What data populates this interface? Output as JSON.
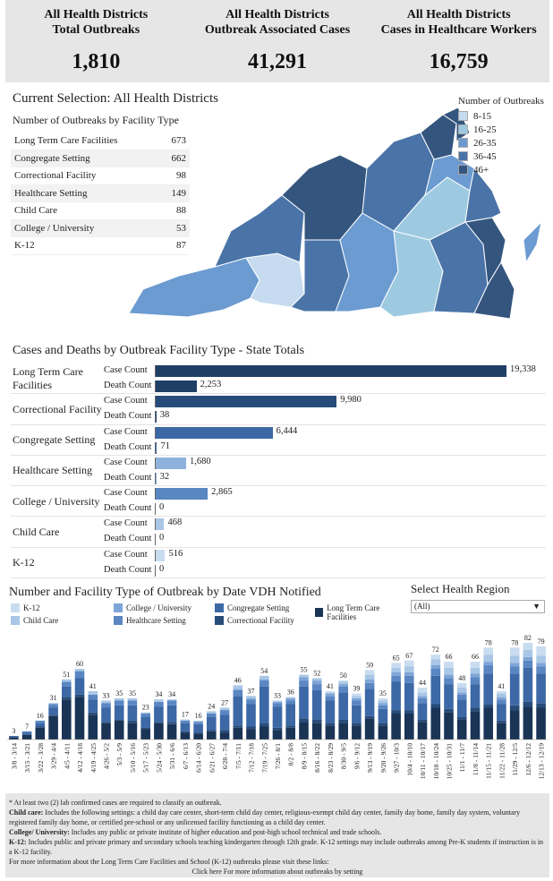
{
  "kpis": [
    {
      "title_1": "All Health Districts",
      "title_2": "Total Outbreaks",
      "value": "1,810"
    },
    {
      "title_1": "All Health Districts",
      "title_2": "Outbreak Associated Cases",
      "value": "41,291"
    },
    {
      "title_1": "All Health Districts",
      "title_2": "Cases in Healthcare Workers",
      "value": "16,759"
    }
  ],
  "selection_title": "Current Selection: All Health Districts",
  "facility_table": {
    "title": "Number of Outbreaks by Facility Type",
    "rows": [
      {
        "label": "Long Term Care Facilities",
        "value": "673"
      },
      {
        "label": "Congregate Setting",
        "value": "662"
      },
      {
        "label": "Correctional Facility",
        "value": "98"
      },
      {
        "label": "Healthcare Setting",
        "value": "149"
      },
      {
        "label": "Child Care",
        "value": "88"
      },
      {
        "label": "College / University",
        "value": "53"
      },
      {
        "label": "K-12",
        "value": "87"
      }
    ]
  },
  "map_legend": {
    "title": "Number of Outbreaks",
    "items": [
      {
        "label": "8-15",
        "color": "#c6dbef"
      },
      {
        "label": "16-25",
        "color": "#9ecae1"
      },
      {
        "label": "26-35",
        "color": "#6b9bd1"
      },
      {
        "label": "36-45",
        "color": "#4a74a8"
      },
      {
        "label": "46+",
        "color": "#34557e"
      }
    ]
  },
  "cases_deaths": {
    "title": "Cases and Deaths by Outbreak Facility Type - State Totals",
    "case_label": "Case Count",
    "death_label": "Death Count",
    "max": 19338,
    "rows": [
      {
        "category": "Long Term Care Facilities",
        "cases": 19338,
        "cases_text": "19,338",
        "deaths": 2253,
        "deaths_text": "2,253",
        "case_color": "#1f3f66",
        "death_color": "#1f3f66"
      },
      {
        "category": "Correctional Facility",
        "cases": 9980,
        "cases_text": "9,980",
        "deaths": 38,
        "deaths_text": "38",
        "case_color": "#274c7a",
        "death_color": "#274c7a"
      },
      {
        "category": "Congregate Setting",
        "cases": 6444,
        "cases_text": "6,444",
        "deaths": 71,
        "deaths_text": "71",
        "case_color": "#3c68a6",
        "death_color": "#3c68a6"
      },
      {
        "category": "Healthcare Setting",
        "cases": 1680,
        "cases_text": "1,680",
        "deaths": 32,
        "deaths_text": "32",
        "case_color": "#8fb2dc",
        "death_color": "#8fb2dc"
      },
      {
        "category": "College / University",
        "cases": 2865,
        "cases_text": "2,865",
        "deaths": 0,
        "deaths_text": "0",
        "case_color": "#5a86c2",
        "death_color": "#5a86c2"
      },
      {
        "category": "Child Care",
        "cases": 468,
        "cases_text": "468",
        "deaths": 0,
        "deaths_text": "0",
        "case_color": "#a9c6e6",
        "death_color": "#a9c6e6"
      },
      {
        "category": "K-12",
        "cases": 516,
        "cases_text": "516",
        "deaths": 0,
        "deaths_text": "0",
        "case_color": "#c9dcf0",
        "death_color": "#c9dcf0"
      }
    ]
  },
  "timeline": {
    "title": "Number and Facility Type of Outbreak by Date VDH Notified",
    "legend": [
      {
        "label": "K-12",
        "color": "#c9dcf0"
      },
      {
        "label": "Child Care",
        "color": "#a9c6e6"
      },
      {
        "label": "College / University",
        "color": "#7fa5d6"
      },
      {
        "label": "Healthcare Setting",
        "color": "#5a86c2"
      },
      {
        "label": "Congregate Setting",
        "color": "#3c68a6"
      },
      {
        "label": "Correctional Facility",
        "color": "#274c7a"
      },
      {
        "label": "Long Term Care Facilities",
        "color": "#1a3456"
      }
    ]
  },
  "region_select": {
    "label": "Select Health Region",
    "value": "(All)"
  },
  "chart_data": {
    "type": "bar",
    "title": "Number and Facility Type of Outbreak by Date VDH Notified",
    "stacked": true,
    "categories": [
      "3/8 - 3/14",
      "3/15 - 3/21",
      "3/22 - 3/28",
      "3/29 - 4/4",
      "4/5 - 4/11",
      "4/12 - 4/18",
      "4/19 - 4/25",
      "4/26 - 5/2",
      "5/3 - 5/9",
      "5/10 - 5/16",
      "5/17 - 5/23",
      "5/24 - 5/30",
      "5/31 - 6/6",
      "6/7 - 6/13",
      "6/14 - 6/20",
      "6/21 - 6/27",
      "6/28 - 7/4",
      "7/5 - 7/11",
      "7/12 - 7/18",
      "7/19 - 7/25",
      "7/26 - 8/1",
      "8/2 - 8/8",
      "8/9 - 8/15",
      "8/16 - 8/22",
      "8/23 - 8/29",
      "8/30 - 9/5",
      "9/6 - 9/12",
      "9/13 - 9/19",
      "9/20 - 9/26",
      "9/27 - 10/3",
      "10/4 - 10/10",
      "10/11 - 10/17",
      "10/18 - 10/24",
      "10/25 - 10/31",
      "11/1 - 11/7",
      "11/8 - 11/14",
      "11/15 - 11/21",
      "11/22 - 11/28",
      "11/29 - 12/5",
      "12/6 - 12/12",
      "12/13 - 12/19"
    ],
    "totals": [
      3,
      7,
      16,
      31,
      51,
      60,
      41,
      33,
      35,
      35,
      23,
      34,
      34,
      17,
      16,
      24,
      27,
      46,
      37,
      54,
      33,
      36,
      55,
      52,
      41,
      50,
      39,
      59,
      35,
      65,
      67,
      44,
      72,
      66,
      48,
      66,
      78,
      41,
      78,
      82,
      79
    ],
    "series": [
      {
        "name": "Long Term Care Facilities",
        "color": "#1a3456",
        "values": [
          2,
          4,
          10,
          20,
          34,
          36,
          21,
          14,
          16,
          14,
          9,
          14,
          13,
          6,
          5,
          7,
          6,
          10,
          9,
          11,
          8,
          10,
          15,
          14,
          12,
          14,
          12,
          18,
          12,
          22,
          22,
          15,
          27,
          23,
          17,
          24,
          27,
          14,
          25,
          28,
          27
        ]
      },
      {
        "name": "Correctional Facility",
        "color": "#274c7a",
        "values": [
          0,
          0,
          1,
          1,
          2,
          2,
          2,
          1,
          1,
          2,
          1,
          1,
          2,
          1,
          1,
          1,
          2,
          2,
          2,
          3,
          2,
          2,
          3,
          3,
          2,
          3,
          2,
          2,
          2,
          3,
          3,
          2,
          3,
          3,
          2,
          3,
          3,
          2,
          4,
          4,
          4
        ]
      },
      {
        "name": "Congregate Setting",
        "color": "#3c68a6",
        "values": [
          1,
          2,
          3,
          6,
          9,
          14,
          11,
          12,
          12,
          13,
          9,
          13,
          14,
          7,
          7,
          11,
          13,
          25,
          19,
          31,
          18,
          18,
          27,
          25,
          19,
          23,
          15,
          23,
          12,
          24,
          23,
          14,
          24,
          21,
          15,
          20,
          26,
          14,
          27,
          29,
          25
        ]
      },
      {
        "name": "Healthcare Setting",
        "color": "#5a86c2",
        "values": [
          0,
          1,
          2,
          3,
          4,
          6,
          4,
          4,
          4,
          4,
          3,
          4,
          4,
          2,
          2,
          3,
          4,
          5,
          4,
          5,
          3,
          3,
          5,
          5,
          4,
          5,
          4,
          5,
          3,
          5,
          6,
          4,
          6,
          5,
          4,
          6,
          7,
          4,
          6,
          6,
          6
        ]
      },
      {
        "name": "College / University",
        "color": "#7fa5d6",
        "values": [
          0,
          0,
          0,
          0,
          0,
          0,
          0,
          0,
          0,
          0,
          0,
          0,
          0,
          0,
          0,
          0,
          0,
          1,
          1,
          1,
          1,
          2,
          3,
          3,
          2,
          2,
          2,
          3,
          2,
          3,
          3,
          2,
          3,
          3,
          2,
          3,
          3,
          2,
          3,
          3,
          3
        ]
      },
      {
        "name": "Child Care",
        "color": "#a9c6e6",
        "values": [
          0,
          0,
          0,
          1,
          2,
          2,
          3,
          2,
          2,
          2,
          1,
          2,
          1,
          1,
          1,
          2,
          2,
          3,
          2,
          3,
          1,
          1,
          2,
          2,
          1,
          2,
          2,
          4,
          2,
          4,
          5,
          3,
          5,
          6,
          4,
          5,
          6,
          3,
          6,
          6,
          6
        ]
      },
      {
        "name": "K-12",
        "color": "#c9dcf0",
        "values": [
          0,
          0,
          0,
          0,
          0,
          0,
          0,
          0,
          0,
          0,
          0,
          0,
          0,
          0,
          0,
          0,
          0,
          0,
          0,
          0,
          0,
          0,
          0,
          0,
          1,
          1,
          2,
          4,
          2,
          4,
          5,
          4,
          4,
          5,
          4,
          5,
          6,
          2,
          7,
          6,
          8
        ]
      }
    ]
  },
  "notes": {
    "line1": "* At least two (2) lab confirmed cases are required to classify an outbreak.",
    "child_care_label": "Child care:",
    "child_care_text": " Includes the following settings: a child day care center, short-term child day center, religious-exempt child day center, family day home, family day system, voluntary registered family day home, or certified pre-school or any unlicensed facility functioning as a child day center.",
    "college_label": "College/ University:",
    "college_text": " Includes any public or private institute of higher education and post-high school technical and trade schools.",
    "k12_label": "K-12:",
    "k12_text": " Includes public and private primary and secondary schools teaching kindergarten through 12th grade. K-12 settings may include outbreaks among Pre-K students if instruction is in a K-12 facility.",
    "more_info": "For more information about the Long Term Care Facilities and School (K-12) outbreaks please visit these links:",
    "click_here": "Click here",
    "click_text": " For more information about outbreaks by setting"
  }
}
